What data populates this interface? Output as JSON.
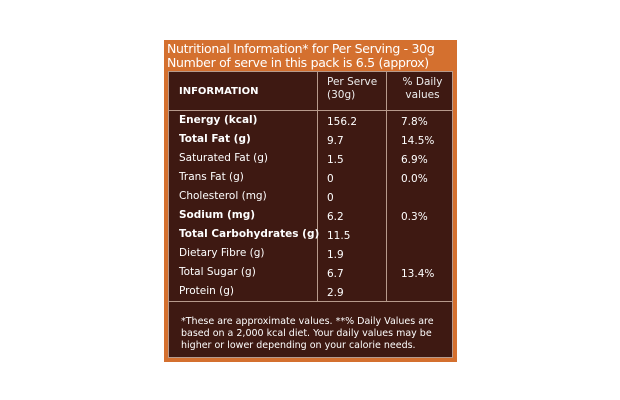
{
  "title": {
    "line1": "Nutritional Information* for Per Serving - 30g",
    "line2": "Number of serve in this pack is 6.5 (approx)"
  },
  "headers": {
    "info": "INFORMATION",
    "per_serve_1": "Per Serve",
    "per_serve_2": "(30g)",
    "daily_1": "% Daily",
    "daily_2": "values"
  },
  "rows": [
    {
      "name": "Energy (kcal)",
      "bold": true,
      "per": "156.2",
      "dv": "7.8%"
    },
    {
      "name": "Total Fat (g)",
      "bold": true,
      "per": "9.7",
      "dv": "14.5%"
    },
    {
      "name": "Saturated Fat (g)",
      "bold": false,
      "per": "1.5",
      "dv": "6.9%"
    },
    {
      "name": "Trans Fat (g)",
      "bold": false,
      "per": "0",
      "dv": "0.0%"
    },
    {
      "name": "Cholesterol (mg)",
      "bold": false,
      "per": "0",
      "dv": ""
    },
    {
      "name": "Sodium (mg)",
      "bold": true,
      "per": "6.2",
      "dv": "0.3%"
    },
    {
      "name": "Total Carbohydrates (g)",
      "bold": true,
      "per": "11.5",
      "dv": ""
    },
    {
      "name": "Dietary Fibre (g)",
      "bold": false,
      "per": "1.9",
      "dv": ""
    },
    {
      "name": "Total Sugar (g)",
      "bold": false,
      "per": "6.7",
      "dv": "13.4%"
    },
    {
      "name": "Protein (g)",
      "bold": false,
      "per": "2.9",
      "dv": ""
    }
  ],
  "footnote": "*These are approximate values.  **% Daily Values are based on a 2,000 kcal diet. Your daily values may be higher or lower depending on your calorie needs.",
  "colors": {
    "panel": "#d4702f",
    "box": "#3e1912"
  }
}
